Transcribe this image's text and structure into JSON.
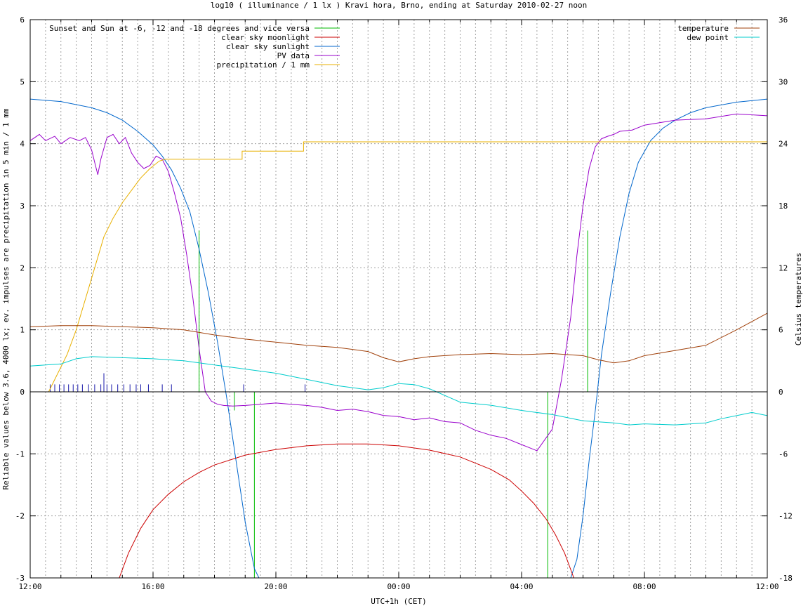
{
  "chart_data": {
    "type": "line",
    "title": "log10 ( illuminance / 1 lx ) Kravi hora, Brno, ending at Saturday 2010-02-27 noon",
    "xlabel": "UTC+1h (CET)",
    "ylabel": "Reliable values below 3.6, 4000 lx; ev. impulses are precipitation in 5 min / 1 mm",
    "y2label": "Celsius temperatures",
    "xlim_hours": [
      0,
      24
    ],
    "ylim": [
      -3,
      6
    ],
    "y2lim": [
      -18,
      36
    ],
    "x_tick_labels": [
      "12:00",
      "16:00",
      "20:00",
      "00:00",
      "04:00",
      "08:00",
      "12:00"
    ],
    "x_tick_hours": [
      0,
      4,
      8,
      12,
      16,
      20,
      24
    ],
    "y_ticks": [
      -3,
      -2,
      -1,
      0,
      1,
      2,
      3,
      4,
      5,
      6
    ],
    "y2_ticks": [
      -18,
      -12,
      -6,
      0,
      6,
      12,
      18,
      24,
      30,
      36
    ],
    "grid": true,
    "legend_left": [
      {
        "name": "Sunset and Sun at -6, -12 and -18 degrees and vice versa",
        "color": "#00bb00"
      },
      {
        "name": "clear sky moonlight",
        "color": "#cc0000"
      },
      {
        "name": "clear sky sunlight",
        "color": "#0066cc"
      },
      {
        "name": "PV data",
        "color": "#9900cc"
      },
      {
        "name": "precipitation / 1 mm",
        "color": "#e8b000"
      }
    ],
    "legend_right": [
      {
        "name": "temperature",
        "color": "#a0400a"
      },
      {
        "name": "dew point",
        "color": "#00cccc"
      }
    ],
    "sun_event_hours": [
      5.5,
      6.65,
      7.3,
      16.85,
      17.5,
      18.15
    ],
    "sun_event_tops": [
      2.6,
      -0.3,
      -3.0,
      -3.0,
      0.0,
      2.6
    ],
    "precip_impulse_hours": [
      0.65,
      0.8,
      0.95,
      1.1,
      1.25,
      1.4,
      1.55,
      1.7,
      1.9,
      2.1,
      2.3,
      2.4,
      2.5,
      2.65,
      2.85,
      3.05,
      3.25,
      3.45,
      3.6,
      3.85,
      4.3,
      4.6,
      6.95,
      8.95
    ],
    "precip_impulse_values": [
      0.12,
      0.12,
      0.12,
      0.12,
      0.12,
      0.12,
      0.12,
      0.12,
      0.12,
      0.12,
      0.12,
      0.3,
      0.12,
      0.12,
      0.12,
      0.12,
      0.12,
      0.12,
      0.12,
      0.12,
      0.12,
      0.12,
      0.12,
      0.12
    ],
    "series": [
      {
        "name": "clear sky sunlight",
        "axis": "y",
        "color": "#0066cc",
        "x": [
          0,
          1,
          2,
          2.5,
          3,
          3.5,
          4,
          4.3,
          4.6,
          4.9,
          5.2,
          5.5,
          5.8,
          6.1,
          6.4,
          6.7,
          7.0,
          7.3,
          7.45,
          17.6,
          17.8,
          18.0,
          18.2,
          18.4,
          18.6,
          18.9,
          19.2,
          19.5,
          19.8,
          20.2,
          20.6,
          21,
          21.5,
          22,
          23,
          24
        ],
        "y": [
          4.72,
          4.68,
          4.58,
          4.5,
          4.38,
          4.2,
          3.98,
          3.8,
          3.58,
          3.28,
          2.9,
          2.3,
          1.6,
          0.8,
          -0.1,
          -1.1,
          -2.1,
          -2.85,
          -3.0,
          -3.0,
          -2.7,
          -2.0,
          -1.1,
          -0.3,
          0.6,
          1.6,
          2.5,
          3.2,
          3.7,
          4.05,
          4.25,
          4.38,
          4.5,
          4.58,
          4.67,
          4.72
        ]
      },
      {
        "name": "clear sky moonlight",
        "axis": "y",
        "color": "#cc0000",
        "x": [
          2.9,
          3.2,
          3.6,
          4.0,
          4.5,
          5.0,
          5.5,
          6.0,
          7.0,
          8.0,
          9.0,
          10.0,
          11.0,
          12.0,
          13.0,
          14.0,
          15.0,
          15.6,
          16.0,
          16.4,
          16.8,
          17.1,
          17.4,
          17.7
        ],
        "y": [
          -3.0,
          -2.6,
          -2.2,
          -1.9,
          -1.65,
          -1.45,
          -1.3,
          -1.18,
          -1.02,
          -0.93,
          -0.87,
          -0.84,
          -0.84,
          -0.87,
          -0.94,
          -1.05,
          -1.25,
          -1.42,
          -1.6,
          -1.8,
          -2.05,
          -2.3,
          -2.6,
          -3.0
        ]
      },
      {
        "name": "PV data",
        "axis": "y",
        "color": "#9900cc",
        "x": [
          0,
          0.3,
          0.5,
          0.8,
          1.0,
          1.3,
          1.6,
          1.8,
          2.0,
          2.1,
          2.2,
          2.3,
          2.5,
          2.7,
          2.9,
          3.1,
          3.3,
          3.5,
          3.7,
          3.9,
          4.1,
          4.3,
          4.5,
          4.7,
          4.9,
          5.1,
          5.3,
          5.5,
          5.7,
          5.9,
          6.1,
          6.3,
          6.6,
          7.0,
          7.5,
          8.0,
          8.5,
          9.0,
          9.5,
          10.0,
          10.5,
          11.0,
          11.5,
          12.0,
          12.5,
          13.0,
          13.5,
          14.0,
          14.2,
          14.5,
          15.0,
          15.5,
          16.0,
          16.5,
          17.0,
          17.3,
          17.6,
          17.8,
          18.0,
          18.2,
          18.4,
          18.6,
          18.8,
          19.0,
          19.2,
          19.6,
          20.0,
          21.0,
          22.0,
          23.0,
          24.0
        ],
        "y": [
          4.05,
          4.15,
          4.05,
          4.12,
          4.0,
          4.1,
          4.05,
          4.1,
          3.9,
          3.7,
          3.5,
          3.75,
          4.1,
          4.15,
          4.0,
          4.1,
          3.85,
          3.7,
          3.6,
          3.65,
          3.8,
          3.75,
          3.55,
          3.2,
          2.8,
          2.2,
          1.5,
          0.7,
          0.0,
          -0.15,
          -0.2,
          -0.22,
          -0.23,
          -0.22,
          -0.2,
          -0.18,
          -0.2,
          -0.22,
          -0.25,
          -0.3,
          -0.28,
          -0.32,
          -0.38,
          -0.4,
          -0.45,
          -0.42,
          -0.48,
          -0.5,
          -0.55,
          -0.62,
          -0.7,
          -0.75,
          -0.85,
          -0.95,
          -0.6,
          0.2,
          1.2,
          2.2,
          3.0,
          3.6,
          3.95,
          4.08,
          4.12,
          4.15,
          4.2,
          4.22,
          4.3,
          4.38,
          4.4,
          4.48,
          4.45
        ]
      },
      {
        "name": "precipitation / 1 mm",
        "axis": "y",
        "color": "#e8b000",
        "x": [
          0,
          0.6,
          0.9,
          1.2,
          1.5,
          1.8,
          2.1,
          2.4,
          2.7,
          3.0,
          3.3,
          3.6,
          3.9,
          4.2,
          4.4,
          5.0,
          6.5,
          6.9,
          6.9,
          8.9,
          8.9,
          24
        ],
        "y": [
          0,
          0,
          0.3,
          0.6,
          1.0,
          1.5,
          2.0,
          2.5,
          2.8,
          3.05,
          3.25,
          3.45,
          3.6,
          3.72,
          3.75,
          3.75,
          3.75,
          3.75,
          3.88,
          3.88,
          4.03,
          4.03
        ]
      },
      {
        "name": "temperature",
        "axis": "y2",
        "color": "#a0400a",
        "x": [
          0,
          1,
          2,
          3,
          4,
          5,
          6,
          7,
          8,
          9,
          10,
          11,
          11.5,
          12,
          12.5,
          13,
          14,
          15,
          16,
          17,
          18,
          18.5,
          19,
          19.5,
          20,
          21,
          22,
          23,
          24
        ],
        "y": [
          6.3,
          6.4,
          6.4,
          6.3,
          6.2,
          6.0,
          5.5,
          5.1,
          4.8,
          4.5,
          4.3,
          3.9,
          3.3,
          2.9,
          3.2,
          3.4,
          3.6,
          3.7,
          3.6,
          3.7,
          3.5,
          3.1,
          2.8,
          3.0,
          3.5,
          4.0,
          4.5,
          6.0,
          7.6
        ]
      },
      {
        "name": "dew point",
        "axis": "y2",
        "color": "#00cccc",
        "x": [
          0,
          1,
          1.5,
          2,
          3,
          4,
          5,
          6,
          7,
          8,
          9,
          10,
          11,
          11.5,
          12,
          12.5,
          13,
          14,
          15,
          16,
          17,
          18,
          19,
          19.5,
          20,
          21,
          22,
          22.5,
          23,
          23.5,
          24
        ],
        "y": [
          2.5,
          2.7,
          3.2,
          3.4,
          3.3,
          3.2,
          3.0,
          2.6,
          2.2,
          1.8,
          1.2,
          0.6,
          0.2,
          0.4,
          0.8,
          0.7,
          0.3,
          -1.0,
          -1.3,
          -1.8,
          -2.2,
          -2.8,
          -3.0,
          -3.2,
          -3.1,
          -3.2,
          -3.0,
          -2.6,
          -2.3,
          -2.0,
          -2.3
        ]
      }
    ]
  }
}
